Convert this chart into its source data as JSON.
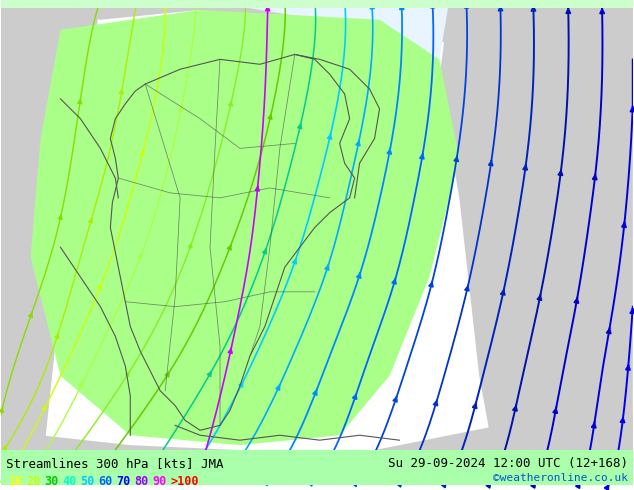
{
  "title_left": "Streamlines 300 hPa [kts] JMA",
  "title_right": "Su 29-09-2024 12:00 UTC (12+168)",
  "credit": "©weatheronline.co.uk",
  "legend_values": [
    "10",
    "20",
    "30",
    "40",
    "50",
    "60",
    "70",
    "80",
    "90",
    ">100"
  ],
  "legend_colors": [
    "#ffff00",
    "#c8ff00",
    "#00cc00",
    "#00ffcc",
    "#00ccff",
    "#0066ff",
    "#0000ff",
    "#9900ff",
    "#ff00ff",
    "#ff0000"
  ],
  "bg_color": "#ffffff",
  "map_bg_land": "#d3d3d3",
  "map_bg_sea": "#ffffff",
  "green_area": "#aaff88",
  "figsize": [
    6.34,
    4.9
  ],
  "dpi": 100,
  "streamline_colors_left": [
    "#33cc00",
    "#aaff00",
    "#00ffcc",
    "#00aaff"
  ],
  "streamline_colors_right": [
    "#0066ff",
    "#0044dd",
    "#0022bb"
  ],
  "purple_line_color": "#8800ff",
  "bottom_bar_color": "#aaffaa",
  "title_fontsize": 9,
  "legend_fontsize": 8.5,
  "credit_fontsize": 8,
  "text_color": "#000000"
}
